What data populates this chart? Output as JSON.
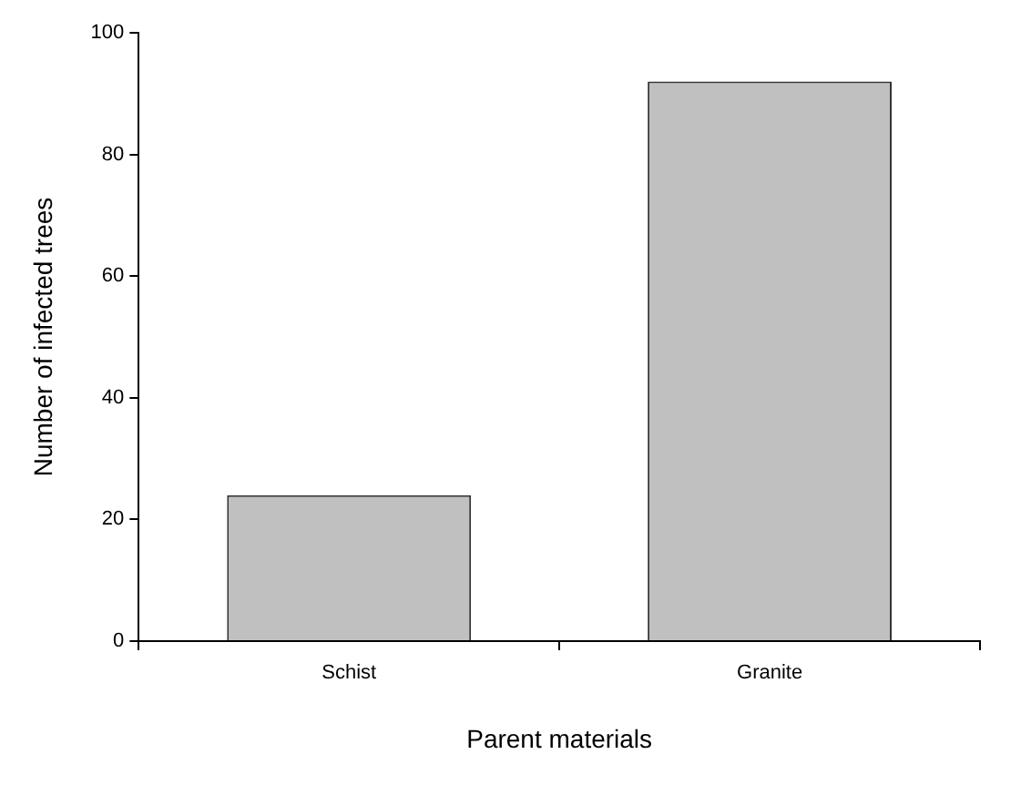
{
  "chart_data": {
    "type": "bar",
    "categories": [
      "Schist",
      "Granite"
    ],
    "values": [
      24,
      92
    ],
    "color": "#c0c0c0",
    "xlabel": "Parent materials",
    "ylabel": "Number of infected trees",
    "ylim": [
      0,
      100
    ],
    "yticks": [
      0,
      20,
      40,
      60,
      80,
      100
    ],
    "grid": false,
    "legend": false
  }
}
